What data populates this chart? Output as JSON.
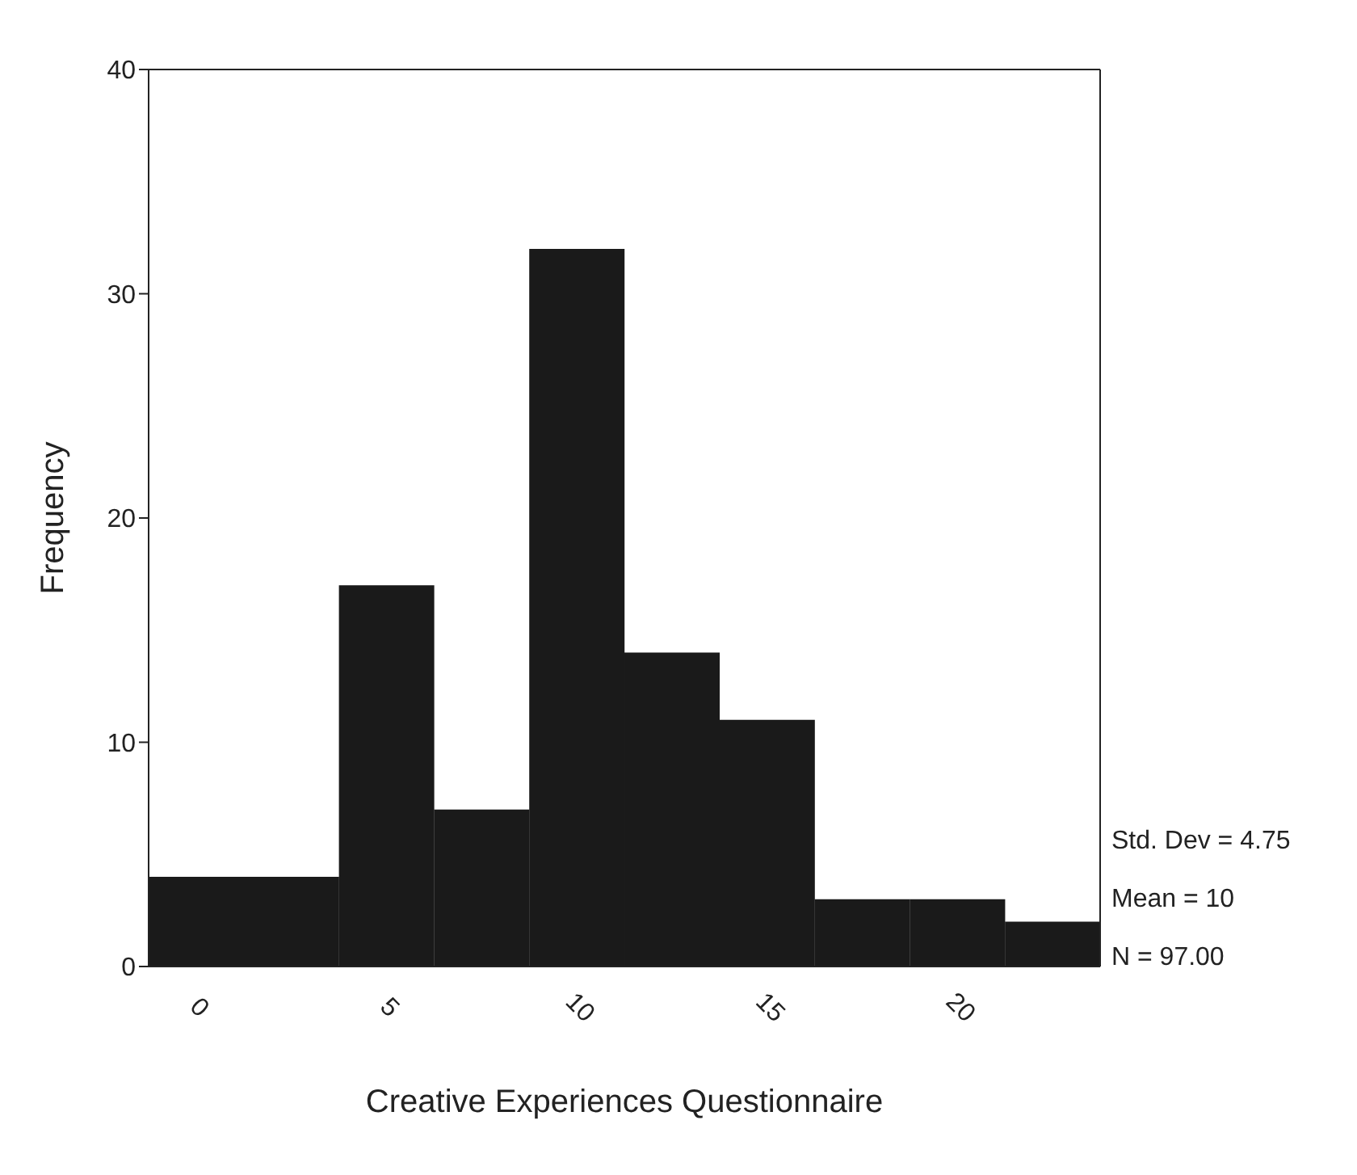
{
  "chart_data": {
    "type": "histogram",
    "xlabel": "Creative Experiences Questionnaire",
    "ylabel": "Frequency",
    "bins": [
      -1.25,
      1.25,
      3.75,
      6.25,
      8.75,
      11.25,
      13.75,
      16.25,
      18.75,
      21.25,
      23.75
    ],
    "values": [
      4,
      4,
      17,
      7,
      32,
      14,
      11,
      3,
      3,
      2
    ],
    "color": "#1a1a1a",
    "xlim": [
      -1.25,
      23.75
    ],
    "xticks": [
      0,
      5,
      10,
      15,
      20
    ],
    "ylim": [
      0,
      40
    ],
    "yticks": [
      0,
      10,
      20,
      30,
      40
    ],
    "annotations": [
      "Std. Dev = 4.75",
      "Mean = 10",
      "N = 97.00"
    ]
  }
}
